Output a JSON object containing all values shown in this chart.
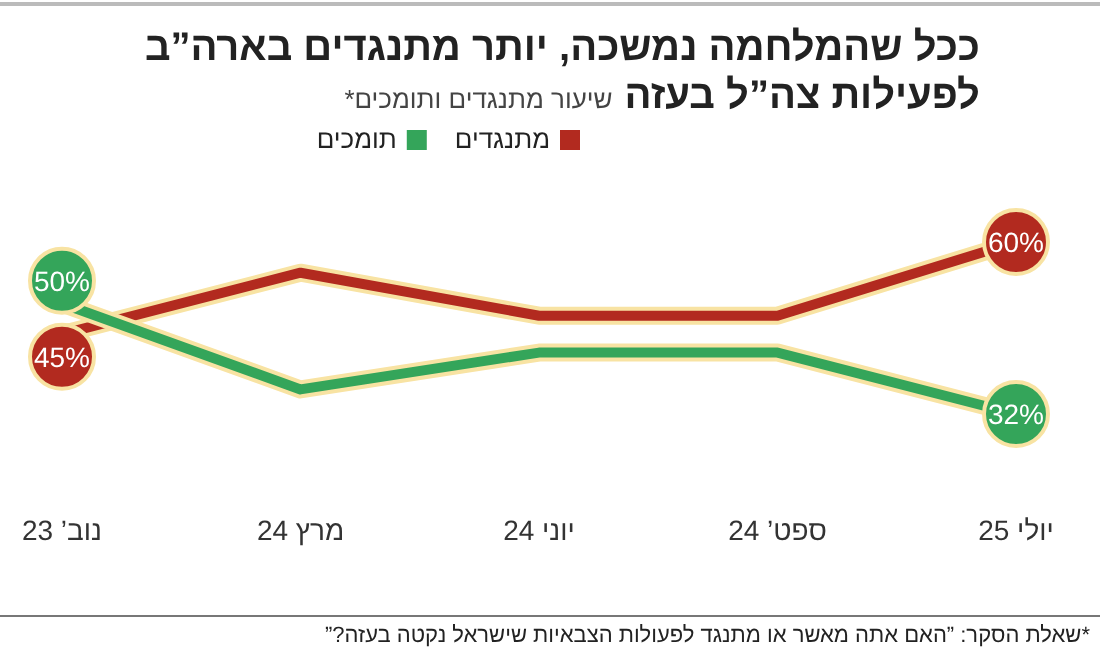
{
  "chart_data": {
    "type": "line",
    "title": "ככל שהמלחמה נמשכה, יותר מתנגדים בארה”ב לפעילות צה”ל בעזה",
    "subtitle": "שיעור מתנגדים ותומכים*",
    "legend": "top left",
    "categories": [
      "נוב’ 23",
      "מרץ 24",
      "יוני 24",
      "ספט’ 24",
      "יולי 25"
    ],
    "series": [
      {
        "name": "מתנגדים",
        "color": "#b22a1f",
        "values": [
          45,
          55,
          48,
          48,
          60
        ],
        "value_labels": [
          "45%",
          null,
          null,
          null,
          "60%"
        ]
      },
      {
        "name": "תומכים",
        "color": "#34a55a",
        "values": [
          50,
          36,
          42,
          42,
          32
        ],
        "value_labels": [
          "50%",
          null,
          null,
          null,
          "32%"
        ]
      }
    ],
    "annotations": [
      "*שאלת הסקר: ”האם אתה מאשר או מתנגד לפעולות הצבאיות שישראל נקטה בעזה?”"
    ]
  }
}
